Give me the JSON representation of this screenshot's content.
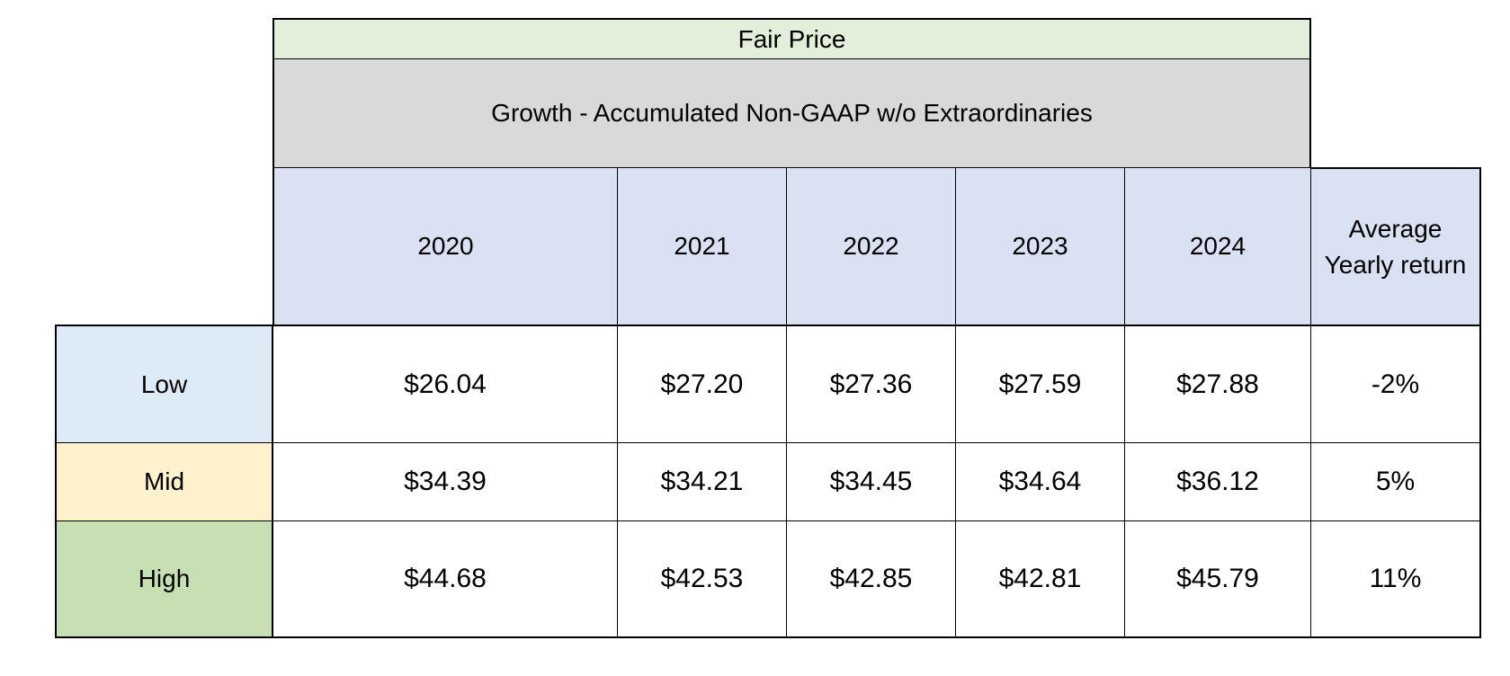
{
  "chart_data": {
    "type": "table",
    "title": "Fair Price",
    "subtitle": "Growth - Accumulated  Non-GAAP w/o Extraordinaries",
    "columns": [
      "2020",
      "2021",
      "2022",
      "2023",
      "2024",
      "Average Yearly return"
    ],
    "rows": [
      {
        "label": "Low",
        "values": [
          "$26.04",
          "$27.20",
          "$27.36",
          "$27.59",
          "$27.88",
          "-2%"
        ],
        "color": "#ddebf7"
      },
      {
        "label": "Mid",
        "values": [
          "$34.39",
          "$34.21",
          "$34.45",
          "$34.64",
          "$36.12",
          "5%"
        ],
        "color": "#fff2cc"
      },
      {
        "label": "High",
        "values": [
          "$44.68",
          "$42.53",
          "$42.85",
          "$42.81",
          "$45.79",
          "11%"
        ],
        "color": "#c6e0b4"
      }
    ],
    "colors": {
      "title_bg": "#e2efda",
      "subtitle_bg": "#d9d9d9",
      "header_bg": "#d9e1f2",
      "cell_bg": "#ffffff",
      "border": "#000000"
    }
  }
}
